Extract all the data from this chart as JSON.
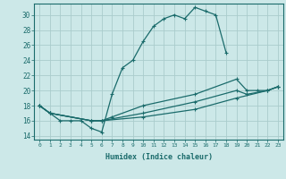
{
  "xlabel": "Humidex (Indice chaleur)",
  "bg_color": "#cce8e8",
  "grid_color": "#aacccc",
  "line_color": "#1a6b6b",
  "xlim": [
    -0.5,
    23.5
  ],
  "ylim": [
    13.5,
    31.5
  ],
  "xtick_labels": [
    "0",
    "1",
    "2",
    "3",
    "4",
    "5",
    "6",
    "7",
    "8",
    "9",
    "10",
    "11",
    "12",
    "13",
    "14",
    "15",
    "16",
    "17",
    "18",
    "19",
    "20",
    "21",
    "22",
    "23"
  ],
  "ytick_values": [
    14,
    16,
    18,
    20,
    22,
    24,
    26,
    28,
    30
  ],
  "series": [
    {
      "x": [
        0,
        1,
        2,
        3,
        4,
        5,
        6,
        7,
        8,
        9,
        10,
        11,
        12,
        13,
        14,
        15,
        16,
        17,
        18
      ],
      "y": [
        18,
        17,
        16,
        16,
        16,
        15,
        14.5,
        19.5,
        23,
        24,
        26.5,
        28.5,
        29.5,
        30,
        29.5,
        31,
        30.5,
        30,
        25
      ]
    },
    {
      "x": [
        0,
        1,
        5,
        6,
        7,
        10,
        15,
        19,
        20,
        21,
        22,
        23
      ],
      "y": [
        18,
        17,
        16,
        16,
        16.5,
        18,
        19.5,
        21.5,
        20,
        20,
        20,
        20.5
      ]
    },
    {
      "x": [
        0,
        1,
        5,
        6,
        10,
        15,
        19,
        20,
        22,
        23
      ],
      "y": [
        18,
        17,
        16,
        16,
        17,
        18.5,
        20,
        19.5,
        20,
        20.5
      ]
    },
    {
      "x": [
        0,
        1,
        5,
        6,
        10,
        15,
        19,
        22,
        23
      ],
      "y": [
        18,
        17,
        16,
        16,
        16.5,
        17.5,
        19,
        20,
        20.5
      ]
    }
  ]
}
